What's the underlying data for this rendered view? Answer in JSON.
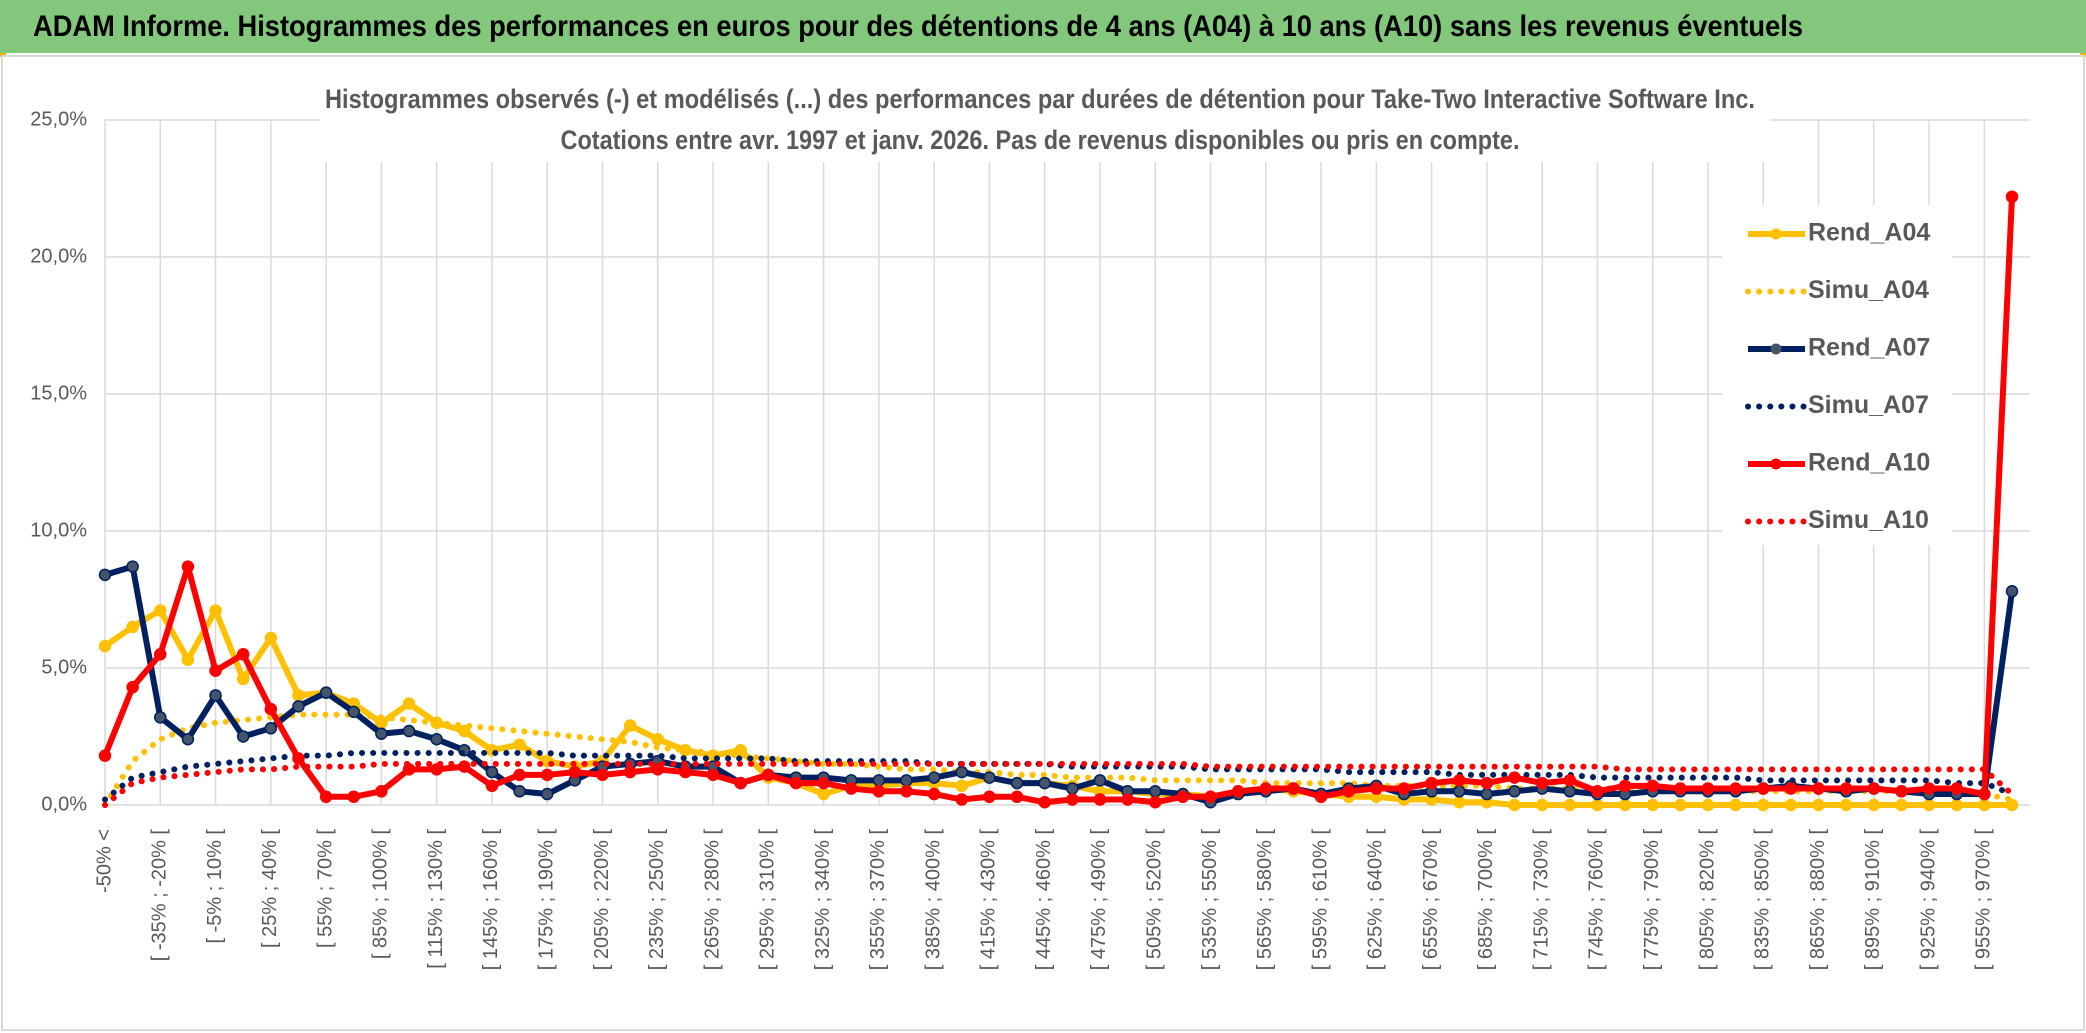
{
  "header": {
    "title": "ADAM Informe. Histogrammes des performances en euros pour des détentions de 4 ans (A04) à 10 ans (A10) sans les revenus éventuels"
  },
  "chart_data": {
    "type": "line",
    "title": "Histogrammes observés (-) et modélisés (...) des performances par durées de détention pour Take-Two Interactive Software Inc.",
    "subtitle": "Cotations entre avr. 1997 et janv. 2026. Pas de revenus disponibles ou pris en compte.",
    "categories": [
      "-50% <",
      null,
      "[ -35% ; -20% [",
      null,
      "[ -5% ; 10% [",
      null,
      "[ 25% ; 40% [",
      null,
      "[ 55% ; 70% [",
      null,
      "[ 85% ; 100% [",
      null,
      "[ 115% ; 130% [",
      null,
      "[ 145% ; 160% [",
      null,
      "[ 175% ; 190% [",
      null,
      "[ 205% ; 220% [",
      null,
      "[ 235% ; 250% [",
      null,
      "[ 265% ; 280% [",
      null,
      "[ 295% ; 310% [",
      null,
      "[ 325% ; 340% [",
      null,
      "[ 355% ; 370% [",
      null,
      "[ 385% ; 400% [",
      null,
      "[ 415% ; 430% [",
      null,
      "[ 445% ; 460% [",
      null,
      "[ 475% ; 490% [",
      null,
      "[ 505% ; 520% [",
      null,
      "[ 535% ; 550% [",
      null,
      "[ 565% ; 580% [",
      null,
      "[ 595% ; 610% [",
      null,
      "[ 625% ; 640% [",
      null,
      "[ 655% ; 670% [",
      null,
      "[ 685% ; 700% [",
      null,
      "[ 715% ; 730% [",
      null,
      "[ 745% ; 760% [",
      null,
      "[ 775% ; 790% [",
      null,
      "[ 805% ; 820% [",
      null,
      "[ 835% ; 850% [",
      null,
      "[ 865% ; 880% [",
      null,
      "[ 895% ; 910% [",
      null,
      "[ 925% ; 940% [",
      null,
      "[ 955% ; 970% [",
      null
    ],
    "series": [
      {
        "name": "Rend_A04",
        "color": "#ffc000",
        "style": "solid",
        "markers": true,
        "values": [
          5.8,
          6.5,
          7.1,
          5.3,
          7.1,
          4.6,
          6.1,
          4.0,
          4.1,
          3.7,
          3.0,
          3.7,
          3.0,
          2.7,
          2.0,
          2.2,
          1.6,
          1.4,
          1.6,
          2.9,
          2.4,
          2.0,
          1.8,
          2.0,
          1.0,
          0.8,
          0.4,
          0.7,
          0.7,
          0.8,
          0.8,
          0.7,
          1.0,
          0.8,
          0.8,
          0.7,
          0.5,
          0.5,
          0.4,
          0.4,
          0.3,
          0.5,
          0.6,
          0.5,
          0.4,
          0.3,
          0.3,
          0.2,
          0.2,
          0.1,
          0.1,
          0,
          0,
          0,
          0,
          0,
          0,
          0,
          0,
          0,
          0,
          0,
          0,
          0,
          0,
          0,
          0,
          0,
          0,
          0
        ]
      },
      {
        "name": "Simu_A04",
        "color": "#ffc000",
        "style": "dotted",
        "markers": false,
        "values": [
          0.0,
          1.6,
          2.4,
          2.8,
          3.0,
          3.1,
          3.2,
          3.3,
          3.3,
          3.3,
          3.2,
          3.1,
          3.0,
          2.9,
          2.8,
          2.7,
          2.6,
          2.5,
          2.4,
          2.3,
          2.1,
          2.0,
          1.9,
          1.8,
          1.7,
          1.6,
          1.5,
          1.5,
          1.4,
          1.3,
          1.3,
          1.2,
          1.2,
          1.1,
          1.1,
          1.0,
          1.0,
          1.0,
          0.9,
          0.9,
          0.9,
          0.9,
          0.8,
          0.8,
          0.8,
          0.8,
          0.7,
          0.7,
          0.7,
          0.7,
          0.7,
          0.6,
          0.6,
          0.6,
          0.6,
          0.6,
          0.6,
          0.5,
          0.5,
          0.5,
          0.5,
          0.5,
          0.5,
          0.5,
          0.5,
          0.5,
          0.5,
          0.4,
          0.4,
          0.2
        ]
      },
      {
        "name": "Rend_A07",
        "color": "#002060",
        "style": "solid",
        "markers": true,
        "values": [
          8.4,
          8.7,
          3.2,
          2.4,
          4.0,
          2.5,
          2.8,
          3.6,
          4.1,
          3.4,
          2.6,
          2.7,
          2.4,
          2.0,
          1.2,
          0.5,
          0.4,
          0.9,
          1.4,
          1.5,
          1.6,
          1.4,
          1.4,
          0.8,
          1.1,
          1.0,
          1.0,
          0.9,
          0.9,
          0.9,
          1.0,
          1.2,
          1.0,
          0.8,
          0.8,
          0.6,
          0.9,
          0.5,
          0.5,
          0.4,
          0.1,
          0.4,
          0.5,
          0.6,
          0.4,
          0.6,
          0.7,
          0.4,
          0.5,
          0.5,
          0.4,
          0.5,
          0.6,
          0.5,
          0.4,
          0.4,
          0.5,
          0.5,
          0.5,
          0.5,
          0.6,
          0.7,
          0.6,
          0.5,
          0.6,
          0.5,
          0.4,
          0.4,
          0.4,
          7.8
        ]
      },
      {
        "name": "Simu_A07",
        "color": "#002060",
        "style": "dotted",
        "markers": false,
        "values": [
          0.2,
          1.0,
          1.2,
          1.4,
          1.5,
          1.6,
          1.7,
          1.8,
          1.8,
          1.9,
          1.9,
          1.9,
          1.9,
          1.9,
          1.9,
          1.9,
          1.9,
          1.8,
          1.8,
          1.8,
          1.8,
          1.7,
          1.7,
          1.7,
          1.7,
          1.6,
          1.6,
          1.6,
          1.6,
          1.6,
          1.5,
          1.5,
          1.5,
          1.5,
          1.5,
          1.4,
          1.4,
          1.4,
          1.4,
          1.4,
          1.3,
          1.3,
          1.3,
          1.3,
          1.3,
          1.2,
          1.2,
          1.2,
          1.2,
          1.1,
          1.1,
          1.1,
          1.1,
          1.1,
          1.0,
          1.0,
          1.0,
          1.0,
          1.0,
          1.0,
          0.9,
          0.9,
          0.9,
          0.9,
          0.9,
          0.9,
          0.9,
          0.8,
          0.8,
          0.4
        ]
      },
      {
        "name": "Rend_A10",
        "color": "#ff0000",
        "style": "solid",
        "markers": true,
        "values": [
          1.8,
          4.3,
          5.5,
          8.7,
          4.9,
          5.5,
          3.5,
          1.7,
          0.3,
          0.3,
          0.5,
          1.3,
          1.3,
          1.4,
          0.7,
          1.1,
          1.1,
          1.2,
          1.1,
          1.2,
          1.3,
          1.2,
          1.1,
          0.8,
          1.1,
          0.8,
          0.8,
          0.6,
          0.5,
          0.5,
          0.4,
          0.2,
          0.3,
          0.3,
          0.1,
          0.2,
          0.2,
          0.2,
          0.1,
          0.3,
          0.3,
          0.5,
          0.6,
          0.6,
          0.3,
          0.5,
          0.6,
          0.6,
          0.8,
          0.9,
          0.8,
          1.0,
          0.8,
          0.9,
          0.5,
          0.7,
          0.7,
          0.6,
          0.6,
          0.6,
          0.6,
          0.6,
          0.6,
          0.6,
          0.6,
          0.5,
          0.6,
          0.6,
          0.4,
          22.2
        ]
      },
      {
        "name": "Simu_A10",
        "color": "#ff0000",
        "style": "dotted",
        "markers": false,
        "values": [
          0.0,
          0.8,
          1.0,
          1.1,
          1.2,
          1.3,
          1.3,
          1.4,
          1.4,
          1.4,
          1.5,
          1.5,
          1.5,
          1.5,
          1.5,
          1.5,
          1.5,
          1.5,
          1.5,
          1.5,
          1.5,
          1.5,
          1.5,
          1.5,
          1.5,
          1.5,
          1.5,
          1.5,
          1.5,
          1.5,
          1.5,
          1.5,
          1.5,
          1.5,
          1.5,
          1.5,
          1.5,
          1.5,
          1.5,
          1.5,
          1.4,
          1.4,
          1.4,
          1.4,
          1.4,
          1.4,
          1.4,
          1.4,
          1.4,
          1.4,
          1.4,
          1.4,
          1.4,
          1.4,
          1.4,
          1.3,
          1.3,
          1.3,
          1.3,
          1.3,
          1.3,
          1.3,
          1.3,
          1.3,
          1.3,
          1.3,
          1.3,
          1.3,
          1.3,
          0.4
        ]
      }
    ],
    "ylim": [
      0,
      25
    ],
    "yticks": [
      {
        "value": 0,
        "label": "0,0%"
      },
      {
        "value": 5,
        "label": "5,0%"
      },
      {
        "value": 10,
        "label": "10,0%"
      },
      {
        "value": 15,
        "label": "15,0%"
      },
      {
        "value": 20,
        "label": "20,0%"
      },
      {
        "value": 25,
        "label": "25,0%"
      }
    ],
    "grid": true,
    "legend": "right"
  }
}
